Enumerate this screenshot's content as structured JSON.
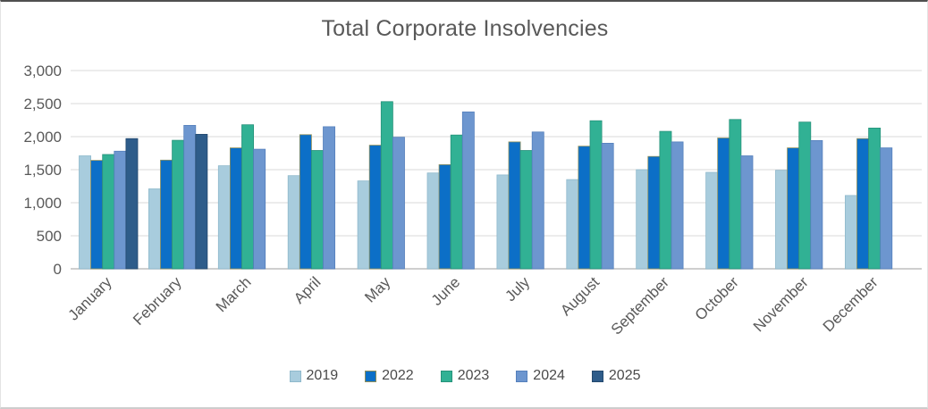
{
  "page": {
    "title": "Total Corporate Insolvencies"
  },
  "chart_data": {
    "type": "bar",
    "title": "Total Corporate Insolvencies",
    "categories": [
      "January",
      "February",
      "March",
      "April",
      "May",
      "June",
      "July",
      "August",
      "September",
      "October",
      "November",
      "December"
    ],
    "series": [
      {
        "name": "2019",
        "color": "#A8CCDD",
        "border": "#8FB9CC",
        "values": [
          1710,
          1210,
          1560,
          1410,
          1330,
          1450,
          1420,
          1350,
          1500,
          1460,
          1490,
          1110
        ]
      },
      {
        "name": "2022",
        "color": "#0C6FC7",
        "border": "#8F8F5A",
        "values": [
          1640,
          1645,
          1830,
          2030,
          1870,
          1575,
          1920,
          1855,
          1700,
          1980,
          1830,
          1970
        ]
      },
      {
        "name": "2023",
        "color": "#31B194",
        "border": "#27927A",
        "values": [
          1730,
          1945,
          2180,
          1790,
          2530,
          2025,
          1790,
          2240,
          2080,
          2260,
          2220,
          2130
        ]
      },
      {
        "name": "2024",
        "color": "#6D96CF",
        "border": "#5580BC",
        "values": [
          1780,
          2170,
          1810,
          2150,
          1990,
          2375,
          2070,
          1900,
          1920,
          1710,
          1940,
          1830
        ]
      },
      {
        "name": "2025",
        "color": "#2E5C8A",
        "border": "#24496E",
        "values": [
          1970,
          2035,
          null,
          null,
          null,
          null,
          null,
          null,
          null,
          null,
          null,
          null
        ]
      }
    ],
    "ylim": [
      0,
      3000
    ],
    "ytick_step": 500,
    "ytick_labels": [
      "0",
      "500",
      "1,000",
      "1,500",
      "2,000",
      "2,500",
      "3,000"
    ],
    "grid": true,
    "legend_position": "bottom",
    "axis_label_color": "#595959",
    "gridline_color": "#D9D9D9",
    "baseline_color": "#BFBFBF"
  }
}
